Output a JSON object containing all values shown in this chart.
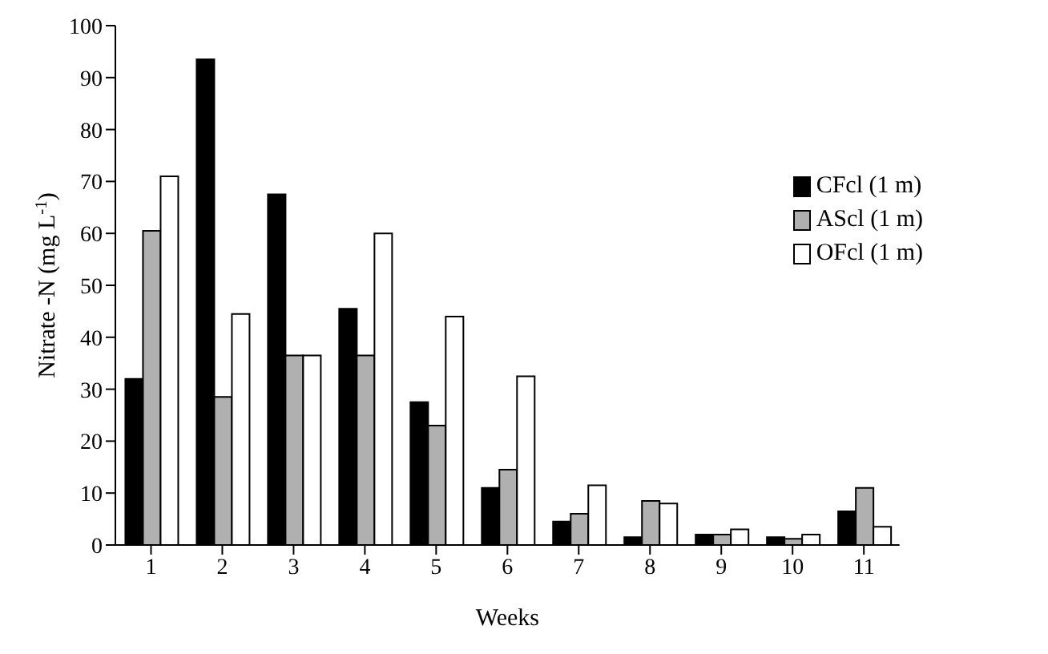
{
  "chart_data": {
    "type": "bar",
    "xlabel": "Weeks",
    "ylabel": "Nitrate -N (mg L$^{-1}$)",
    "categories": [
      "1",
      "2",
      "3",
      "4",
      "5",
      "6",
      "7",
      "8",
      "9",
      "10",
      "11"
    ],
    "series": [
      {
        "name": "CFcl (1 m)",
        "color": "#000000",
        "values": [
          32,
          93.5,
          67.5,
          45.5,
          27.5,
          11,
          4.5,
          1.5,
          2,
          1.5,
          6.5
        ]
      },
      {
        "name": "AScl (1 m)",
        "color": "#b0b0b0",
        "values": [
          60.5,
          28.5,
          36.5,
          36.5,
          23,
          14.5,
          6,
          8.5,
          2,
          1.2,
          11
        ]
      },
      {
        "name": "OFcl (1 m)",
        "color": "#ffffff",
        "values": [
          71,
          44.5,
          36.5,
          60,
          44,
          32.5,
          11.5,
          8,
          3,
          2,
          3.5
        ]
      }
    ],
    "ylim": [
      0,
      100
    ],
    "yticks": [
      0,
      10,
      20,
      30,
      40,
      50,
      60,
      70,
      80,
      90,
      100
    ],
    "grid": false,
    "legend": "top right"
  }
}
